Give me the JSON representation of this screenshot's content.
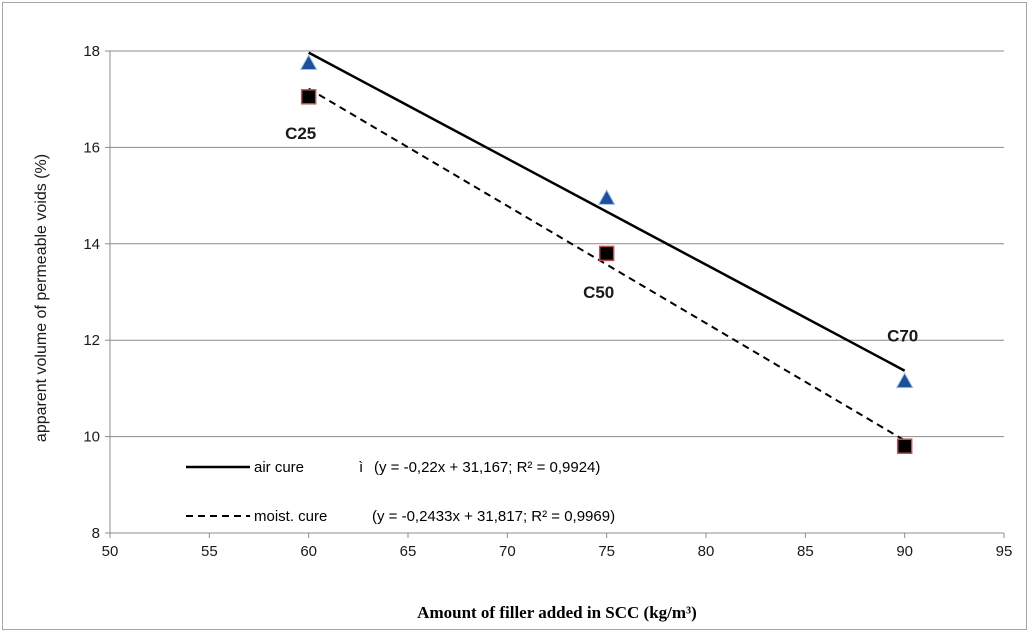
{
  "chart_data": {
    "type": "scatter",
    "title": "",
    "xlabel": "Amount of filler added in SCC (kg/m³)",
    "ylabel": "apparent volume of permeable voids  (%)",
    "xlim": [
      50,
      95
    ],
    "ylim": [
      8,
      18
    ],
    "x_ticks": [
      50,
      55,
      60,
      65,
      70,
      75,
      80,
      85,
      90,
      95
    ],
    "y_ticks": [
      8,
      10,
      12,
      14,
      16,
      18
    ],
    "grid": "horizontal",
    "legend_position": "bottom-left",
    "series": [
      {
        "name": "air cure",
        "marker": "triangle",
        "marker_color": "#1f4e9a",
        "line_style": "solid",
        "x": [
          60,
          75,
          90
        ],
        "y": [
          17.75,
          14.95,
          11.15
        ],
        "trendline": {
          "slope": -0.22,
          "intercept": 31.167
        },
        "equation_label": "(y = -0,22x + 31,167; R² = 0,9924)",
        "equation_prefix": "ì"
      },
      {
        "name": "moist. cure",
        "marker": "square",
        "marker_color": "#000000",
        "marker_edge": "#c0504d",
        "line_style": "dashed",
        "x": [
          60,
          75,
          90
        ],
        "y": [
          17.05,
          13.8,
          9.8
        ],
        "trendline": {
          "slope": -0.2433,
          "intercept": 31.817
        },
        "equation_label": "(y = -0,2433x + 31,817; R² = 0,9969)"
      }
    ],
    "annotations": [
      {
        "text": "C25",
        "x": 60,
        "y": 16.3
      },
      {
        "text": "C50",
        "x": 75,
        "y": 13.0
      },
      {
        "text": "C70",
        "x": 90,
        "y": 12.1
      }
    ]
  }
}
